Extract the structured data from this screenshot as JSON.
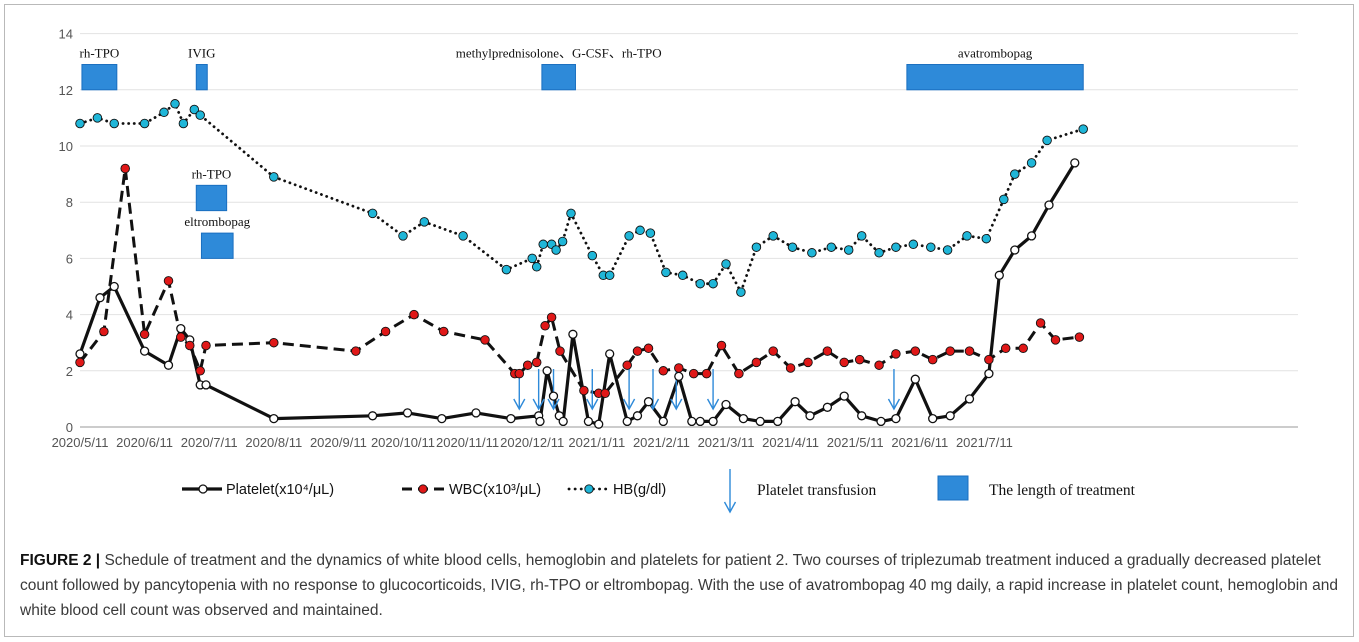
{
  "chart_data": {
    "type": "line",
    "ylim": [
      0,
      14
    ],
    "yticks": [
      0,
      2,
      4,
      6,
      8,
      10,
      12,
      14
    ],
    "xticks": [
      "2020/5/11",
      "2020/6/11",
      "2020/7/11",
      "2020/8/11",
      "2020/9/11",
      "2020/10/11",
      "2020/11/11",
      "2020/12/11",
      "2021/1/11",
      "2021/2/11",
      "2021/3/11",
      "2021/4/11",
      "2021/5/11",
      "2021/6/11",
      "2021/7/11"
    ],
    "xlabel": "",
    "ylabel": "",
    "series": [
      {
        "name": "Platelet(x10⁴/μL)",
        "style": "solid",
        "color": "#111111",
        "marker_fill": "#ffffff",
        "points": [
          [
            0,
            2.6
          ],
          [
            0.31,
            4.6
          ],
          [
            0.53,
            5.0
          ],
          [
            1.0,
            2.7
          ],
          [
            1.37,
            2.2
          ],
          [
            1.56,
            3.5
          ],
          [
            1.7,
            3.1
          ],
          [
            1.86,
            1.5
          ],
          [
            1.95,
            1.5
          ],
          [
            3.0,
            0.3
          ],
          [
            4.53,
            0.4
          ],
          [
            5.07,
            0.5
          ],
          [
            5.6,
            0.3
          ],
          [
            6.13,
            0.5
          ],
          [
            6.67,
            0.3
          ],
          [
            7.1,
            0.4
          ],
          [
            7.12,
            0.2
          ],
          [
            7.23,
            2.0
          ],
          [
            7.33,
            1.1
          ],
          [
            7.42,
            0.4
          ],
          [
            7.48,
            0.2
          ],
          [
            7.63,
            3.3
          ],
          [
            7.87,
            0.2
          ],
          [
            8.03,
            0.1
          ],
          [
            8.2,
            2.6
          ],
          [
            8.47,
            0.2
          ],
          [
            8.63,
            0.4
          ],
          [
            8.8,
            0.9
          ],
          [
            9.03,
            0.2
          ],
          [
            9.27,
            1.8
          ],
          [
            9.47,
            0.2
          ],
          [
            9.6,
            0.2
          ],
          [
            9.8,
            0.2
          ],
          [
            10.0,
            0.8
          ],
          [
            10.27,
            0.3
          ],
          [
            10.53,
            0.2
          ],
          [
            10.8,
            0.2
          ],
          [
            11.07,
            0.9
          ],
          [
            11.3,
            0.4
          ],
          [
            11.57,
            0.7
          ],
          [
            11.83,
            1.1
          ],
          [
            12.1,
            0.4
          ],
          [
            12.4,
            0.2
          ],
          [
            12.63,
            0.3
          ],
          [
            12.93,
            1.7
          ],
          [
            13.2,
            0.3
          ],
          [
            13.47,
            0.4
          ],
          [
            13.77,
            1.0
          ],
          [
            14.07,
            1.9
          ],
          [
            14.23,
            5.4
          ],
          [
            14.47,
            6.3
          ],
          [
            14.73,
            6.8
          ],
          [
            15.0,
            7.9
          ],
          [
            15.4,
            9.4
          ]
        ]
      },
      {
        "name": "WBC(x10³/μL)",
        "style": "dashed",
        "color": "#111111",
        "marker_fill": "#e01818",
        "points": [
          [
            0,
            2.3
          ],
          [
            0.37,
            3.4
          ],
          [
            0.7,
            9.2
          ],
          [
            1.0,
            3.3
          ],
          [
            1.37,
            5.2
          ],
          [
            1.56,
            3.2
          ],
          [
            1.7,
            2.9
          ],
          [
            1.86,
            2.0
          ],
          [
            1.95,
            2.9
          ],
          [
            3.0,
            3.0
          ],
          [
            4.27,
            2.7
          ],
          [
            4.73,
            3.4
          ],
          [
            5.17,
            4.0
          ],
          [
            5.63,
            3.4
          ],
          [
            6.27,
            3.1
          ],
          [
            6.73,
            1.9
          ],
          [
            6.8,
            1.9
          ],
          [
            6.93,
            2.2
          ],
          [
            7.07,
            2.3
          ],
          [
            7.2,
            3.6
          ],
          [
            7.3,
            3.9
          ],
          [
            7.43,
            2.7
          ],
          [
            7.8,
            1.3
          ],
          [
            8.03,
            1.2
          ],
          [
            8.13,
            1.2
          ],
          [
            8.47,
            2.2
          ],
          [
            8.63,
            2.7
          ],
          [
            8.8,
            2.8
          ],
          [
            9.03,
            2.0
          ],
          [
            9.27,
            2.1
          ],
          [
            9.5,
            1.9
          ],
          [
            9.7,
            1.9
          ],
          [
            9.93,
            2.9
          ],
          [
            10.2,
            1.9
          ],
          [
            10.47,
            2.3
          ],
          [
            10.73,
            2.7
          ],
          [
            11.0,
            2.1
          ],
          [
            11.27,
            2.3
          ],
          [
            11.57,
            2.7
          ],
          [
            11.83,
            2.3
          ],
          [
            12.07,
            2.4
          ],
          [
            12.37,
            2.2
          ],
          [
            12.63,
            2.6
          ],
          [
            12.93,
            2.7
          ],
          [
            13.2,
            2.4
          ],
          [
            13.47,
            2.7
          ],
          [
            13.77,
            2.7
          ],
          [
            14.07,
            2.4
          ],
          [
            14.33,
            2.8
          ],
          [
            14.6,
            2.8
          ],
          [
            14.87,
            3.7
          ],
          [
            15.1,
            3.1
          ],
          [
            15.47,
            3.2
          ]
        ]
      },
      {
        "name": "HB(g/dl)",
        "style": "dotted",
        "color": "#111111",
        "marker_fill": "#1fb6d8",
        "points": [
          [
            0,
            10.8
          ],
          [
            0.27,
            11.0
          ],
          [
            0.53,
            10.8
          ],
          [
            1.0,
            10.8
          ],
          [
            1.3,
            11.2
          ],
          [
            1.47,
            11.5
          ],
          [
            1.6,
            10.8
          ],
          [
            1.77,
            11.3
          ],
          [
            1.86,
            11.1
          ],
          [
            3.0,
            8.9
          ],
          [
            4.53,
            7.6
          ],
          [
            5.0,
            6.8
          ],
          [
            5.33,
            7.3
          ],
          [
            5.93,
            6.8
          ],
          [
            6.6,
            5.6
          ],
          [
            7.0,
            6.0
          ],
          [
            7.07,
            5.7
          ],
          [
            7.17,
            6.5
          ],
          [
            7.3,
            6.5
          ],
          [
            7.37,
            6.3
          ],
          [
            7.47,
            6.6
          ],
          [
            7.6,
            7.6
          ],
          [
            7.93,
            6.1
          ],
          [
            8.1,
            5.4
          ],
          [
            8.2,
            5.4
          ],
          [
            8.5,
            6.8
          ],
          [
            8.67,
            7.0
          ],
          [
            8.83,
            6.9
          ],
          [
            9.07,
            5.5
          ],
          [
            9.33,
            5.4
          ],
          [
            9.6,
            5.1
          ],
          [
            9.8,
            5.1
          ],
          [
            10.0,
            5.8
          ],
          [
            10.23,
            4.8
          ],
          [
            10.47,
            6.4
          ],
          [
            10.73,
            6.8
          ],
          [
            11.03,
            6.4
          ],
          [
            11.33,
            6.2
          ],
          [
            11.63,
            6.4
          ],
          [
            11.9,
            6.3
          ],
          [
            12.1,
            6.8
          ],
          [
            12.37,
            6.2
          ],
          [
            12.63,
            6.4
          ],
          [
            12.9,
            6.5
          ],
          [
            13.17,
            6.4
          ],
          [
            13.43,
            6.3
          ],
          [
            13.73,
            6.8
          ],
          [
            14.03,
            6.7
          ],
          [
            14.3,
            8.1
          ],
          [
            14.47,
            9.0
          ],
          [
            14.73,
            9.4
          ],
          [
            14.97,
            10.2
          ],
          [
            15.53,
            10.6
          ]
        ]
      }
    ],
    "treatments": [
      {
        "label": "rh-TPO",
        "x_start": 0.03,
        "x_end": 0.57,
        "y_bottom": 12.0,
        "y_top": 12.9
      },
      {
        "label": "IVIG",
        "x_start": 1.8,
        "x_end": 1.97,
        "y_bottom": 12.0,
        "y_top": 12.9
      },
      {
        "label": "rh-TPO",
        "x_start": 1.8,
        "x_end": 2.27,
        "y_bottom": 7.7,
        "y_top": 8.6
      },
      {
        "label": "eltrombopag",
        "x_start": 1.88,
        "x_end": 2.37,
        "y_bottom": 6.0,
        "y_top": 6.9
      },
      {
        "label": "methylprednisolone、G-CSF、rh-TPO",
        "x_start": 7.15,
        "x_end": 7.67,
        "y_bottom": 12.0,
        "y_top": 12.9
      },
      {
        "label": "avatrombopag",
        "x_start": 12.8,
        "x_end": 15.53,
        "y_bottom": 12.0,
        "y_top": 12.9
      }
    ],
    "transfusions_x": [
      6.8,
      7.1,
      7.33,
      7.93,
      8.5,
      8.87,
      9.23,
      9.8,
      12.6
    ],
    "legend": {
      "position": "bottom",
      "platelet": "Platelet(x10⁴/μL)",
      "wbc": "WBC(x10³/μL)",
      "hb": "HB(g/dl)",
      "transfusion": "Platelet transfusion",
      "treatment": "The length of treatment"
    },
    "colors": {
      "bar": "#2e8ad9",
      "bar_edge": "#1a6fc0",
      "arrow": "#2e8ad9",
      "grid": "#e2e2e2"
    }
  },
  "caption": {
    "label": "FIGURE 2 |",
    "text": " Schedule of treatment and the dynamics of white blood cells, hemoglobin and platelets for patient 2. Two courses of triplezumab treatment induced a gradually decreased platelet count followed by pancytopenia with no response to glucocorticoids, IVIG, rh-TPO or eltrombopag. With the use of avatrombopag 40 mg daily, a rapid increase in platelet count, hemoglobin and white blood cell count was observed and maintained."
  }
}
